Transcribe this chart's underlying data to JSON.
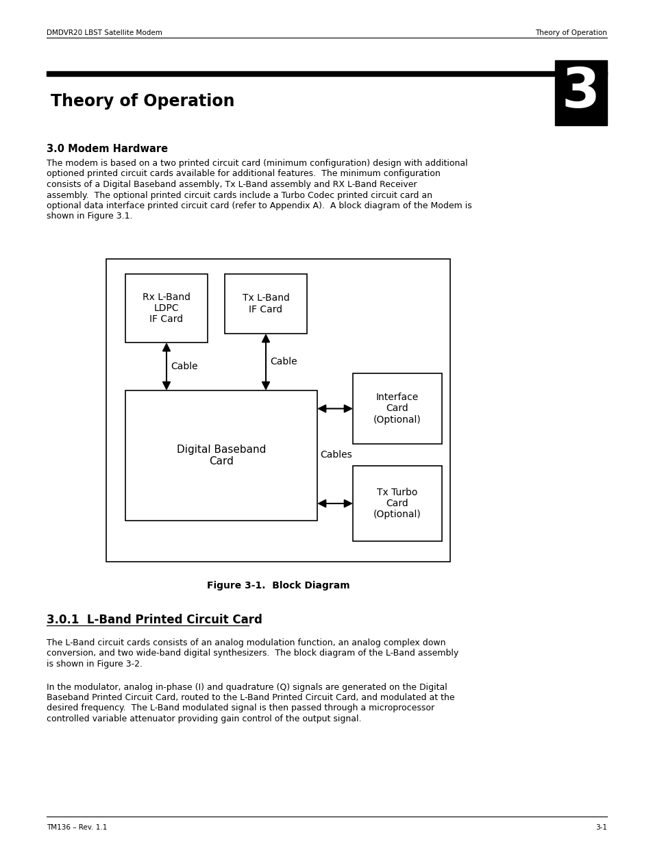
{
  "header_left": "DMDVR20 LBST Satellite Modem",
  "header_right": "Theory of Operation",
  "chapter_title": "Theory of Operation",
  "chapter_number": "3",
  "section_30_title": "3.0 Modem Hardware",
  "section_30_body_lines": [
    "The modem is based on a two printed circuit card (minimum configuration) design with additional",
    "optioned printed circuit cards available for additional features.  The minimum configuration",
    "consists of a Digital Baseband assembly, Tx L-Band assembly and RX L-Band Receiver",
    "assembly.  The optional printed circuit cards include a Turbo Codec printed circuit card an",
    "optional data interface printed circuit card (refer to Appendix A).  A block diagram of the Modem is",
    "shown in Figure 3.1."
  ],
  "figure_caption": "Figure 3-1.  Block Diagram",
  "section_301_title": "3.0.1  L-Band Printed Circuit Card",
  "section_301_para1_lines": [
    "The L-Band circuit cards consists of an analog modulation function, an analog complex down",
    "conversion, and two wide-band digital synthesizers.  The block diagram of the L-Band assembly",
    "is shown in Figure 3-2."
  ],
  "section_301_para2_lines": [
    "In the modulator, analog in-phase (I) and quadrature (Q) signals are generated on the Digital",
    "Baseband Printed Circuit Card, routed to the L-Band Printed Circuit Card, and modulated at the",
    "desired frequency.  The L-Band modulated signal is then passed through a microprocessor",
    "controlled variable attenuator providing gain control of the output signal."
  ],
  "footer_left": "TM136 – Rev. 1.1",
  "footer_right": "3-1",
  "bg_color": "#ffffff",
  "box_rx": "Rx L-Band\nLDPC\nIF Card",
  "box_tx": "Tx L-Band\nIF Card",
  "box_db": "Digital Baseband\nCard",
  "box_ic": "Interface\nCard\n(Optional)",
  "box_tt": "Tx Turbo\nCard\n(Optional)",
  "lbl_cable_l": "Cable",
  "lbl_cable_r": "Cable",
  "lbl_cables": "Cables"
}
